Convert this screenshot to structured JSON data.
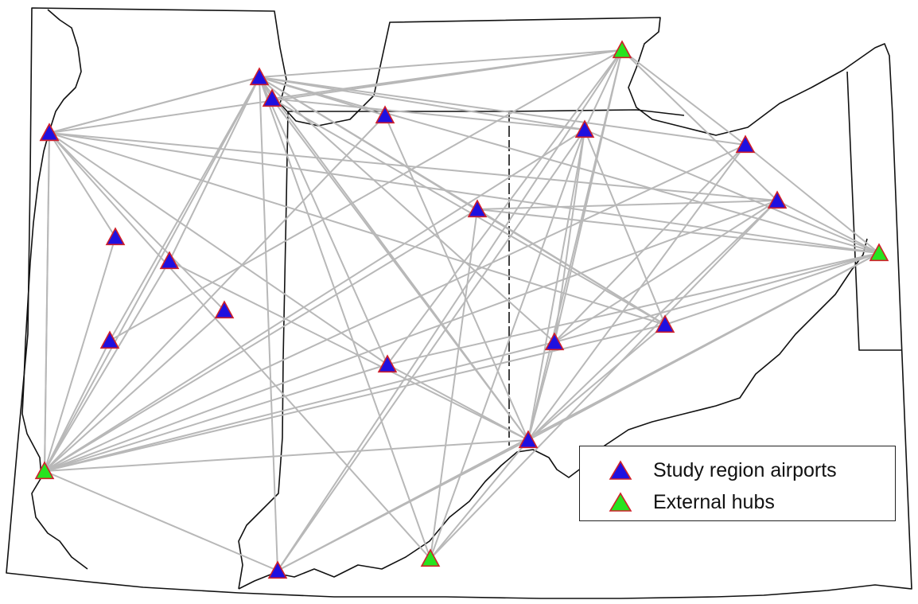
{
  "colors": {
    "study_airport_fill": "#1f10e0",
    "external_hub_fill": "#27e31f",
    "marker_stroke": "#d0202a",
    "route_line": "#b8b8b8",
    "boundary": "#111111"
  },
  "legend": {
    "study_label": "Study region airports",
    "hub_label": "External hubs"
  },
  "airports": [
    {
      "id": "a1",
      "type": "study"
    },
    {
      "id": "a2",
      "type": "study"
    },
    {
      "id": "a3",
      "type": "study"
    },
    {
      "id": "a4",
      "type": "study"
    },
    {
      "id": "a5",
      "type": "study"
    },
    {
      "id": "a6",
      "type": "study"
    },
    {
      "id": "a7",
      "type": "study"
    },
    {
      "id": "a8",
      "type": "study"
    },
    {
      "id": "a9",
      "type": "study"
    },
    {
      "id": "a10",
      "type": "study"
    },
    {
      "id": "a11",
      "type": "study"
    },
    {
      "id": "a12",
      "type": "study"
    },
    {
      "id": "a13",
      "type": "study"
    },
    {
      "id": "a14",
      "type": "study"
    },
    {
      "id": "a15",
      "type": "study"
    },
    {
      "id": "a16",
      "type": "study"
    },
    {
      "id": "a17",
      "type": "study"
    },
    {
      "id": "a18",
      "type": "study"
    },
    {
      "id": "h1",
      "type": "hub"
    },
    {
      "id": "h2",
      "type": "hub"
    },
    {
      "id": "h3",
      "type": "hub"
    },
    {
      "id": "h4",
      "type": "hub"
    }
  ],
  "routes": [
    [
      "h1",
      "a1"
    ],
    [
      "h1",
      "a2"
    ],
    [
      "h1",
      "a3"
    ],
    [
      "h1",
      "a5"
    ],
    [
      "h1",
      "a6"
    ],
    [
      "h1",
      "a7"
    ],
    [
      "h1",
      "a8"
    ],
    [
      "h1",
      "a9"
    ],
    [
      "h1",
      "a11"
    ],
    [
      "h1",
      "a12"
    ],
    [
      "h1",
      "a13"
    ],
    [
      "h1",
      "a14"
    ],
    [
      "h1",
      "a15"
    ],
    [
      "h1",
      "a16"
    ],
    [
      "h1",
      "a17"
    ],
    [
      "h1",
      "a18"
    ],
    [
      "h2",
      "a1"
    ],
    [
      "h2",
      "a2"
    ],
    [
      "h2",
      "a4"
    ],
    [
      "h2",
      "a11"
    ],
    [
      "h2",
      "a12"
    ],
    [
      "h2",
      "a13"
    ],
    [
      "h2",
      "a14"
    ],
    [
      "h2",
      "a15"
    ],
    [
      "h2",
      "a17"
    ],
    [
      "h2",
      "a18"
    ],
    [
      "h2",
      "a6"
    ],
    [
      "h3",
      "a1"
    ],
    [
      "h3",
      "a2"
    ],
    [
      "h3",
      "a11"
    ],
    [
      "h3",
      "a12"
    ],
    [
      "h3",
      "a13"
    ],
    [
      "h3",
      "a14"
    ],
    [
      "h3",
      "a15"
    ],
    [
      "h3",
      "a16"
    ],
    [
      "h3",
      "a17"
    ],
    [
      "h3",
      "a18"
    ],
    [
      "h4",
      "a1"
    ],
    [
      "h4",
      "a2"
    ],
    [
      "h4",
      "a11"
    ],
    [
      "h4",
      "a17"
    ],
    [
      "h4",
      "a13"
    ],
    [
      "a1",
      "a2"
    ],
    [
      "a1",
      "a3"
    ],
    [
      "a1",
      "a7"
    ],
    [
      "a1",
      "a14"
    ],
    [
      "a1",
      "a16"
    ],
    [
      "a1",
      "a13"
    ],
    [
      "a2",
      "a4"
    ],
    [
      "a2",
      "a5"
    ],
    [
      "a2",
      "a6"
    ],
    [
      "a2",
      "a8"
    ],
    [
      "a2",
      "a9"
    ],
    [
      "a2",
      "a10"
    ],
    [
      "a2",
      "a11"
    ],
    [
      "a2",
      "a12"
    ],
    [
      "a2",
      "a14"
    ],
    [
      "a2",
      "a15"
    ],
    [
      "a2",
      "a16"
    ],
    [
      "a2",
      "a17"
    ],
    [
      "a2",
      "a18"
    ],
    [
      "a4",
      "a17"
    ],
    [
      "a4",
      "a11"
    ],
    [
      "a9",
      "a17"
    ],
    [
      "a10",
      "a16"
    ],
    [
      "a10",
      "a13"
    ],
    [
      "a11",
      "a17"
    ],
    [
      "a11",
      "a15"
    ],
    [
      "a11",
      "a18"
    ],
    [
      "a11",
      "a16"
    ],
    [
      "a12",
      "a17"
    ],
    [
      "a12",
      "a15"
    ],
    [
      "a13",
      "a17"
    ],
    [
      "a13",
      "a15"
    ],
    [
      "a14",
      "a17"
    ],
    [
      "a15",
      "a17"
    ],
    [
      "a17",
      "a18"
    ],
    [
      "a17",
      "a16"
    ],
    [
      "h3",
      "a10"
    ],
    [
      "h4",
      "a10"
    ],
    [
      "h1",
      "a10"
    ],
    [
      "a4",
      "a16"
    ],
    [
      "a5",
      "a17"
    ]
  ]
}
